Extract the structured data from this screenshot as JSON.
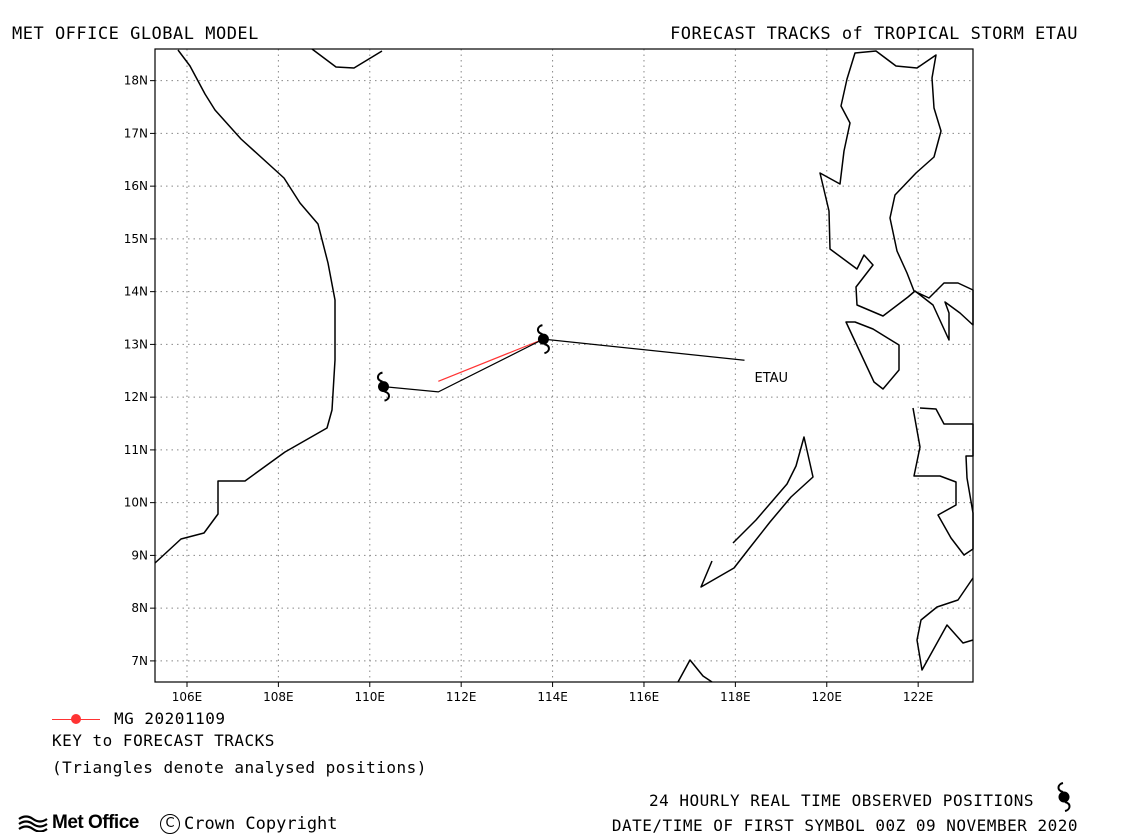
{
  "header": {
    "left_title": "MET OFFICE GLOBAL MODEL",
    "right_title": "FORECAST TRACKS of TROPICAL STORM ETAU"
  },
  "map": {
    "lon_range": [
      105.3,
      123.2
    ],
    "lat_range": [
      6.6,
      18.6
    ],
    "x_ticks": [
      "106E",
      "108E",
      "110E",
      "112E",
      "114E",
      "116E",
      "118E",
      "120E",
      "122E"
    ],
    "y_ticks": [
      "7N",
      "8N",
      "9N",
      "10N",
      "11N",
      "12N",
      "13N",
      "14N",
      "15N",
      "16N",
      "17N",
      "18N"
    ],
    "grid": "dotted",
    "storm_label": "ETAU"
  },
  "chart_data": {
    "type": "line",
    "x_label": "",
    "y_label": "",
    "series": [
      {
        "name": "MG 20201109",
        "color": "#ff3333",
        "points": [
          [
            113.8,
            13.1
          ],
          [
            111.5,
            12.3
          ]
        ]
      },
      {
        "name": "",
        "color": "#000000",
        "points": [
          [
            118.2,
            12.7
          ],
          [
            113.8,
            13.1
          ],
          [
            111.5,
            12.1
          ],
          [
            110.3,
            12.2
          ]
        ]
      }
    ],
    "observed_positions": [
      [
        113.8,
        13.1
      ],
      [
        110.3,
        12.2
      ]
    ]
  },
  "key": {
    "entry_label": "MG 20201109",
    "title": "KEY to FORECAST TRACKS",
    "note": "(Triangles denote analysed positions)"
  },
  "footer": {
    "observed_text": "24 HOURLY REAL TIME OBSERVED POSITIONS",
    "first_symbol_text": "DATE/TIME OF FIRST SYMBOL 00Z 09 NOVEMBER 2020",
    "logo_text": "Met Office",
    "copyright_text": "Crown Copyright",
    "copyright_symbol": "C"
  }
}
